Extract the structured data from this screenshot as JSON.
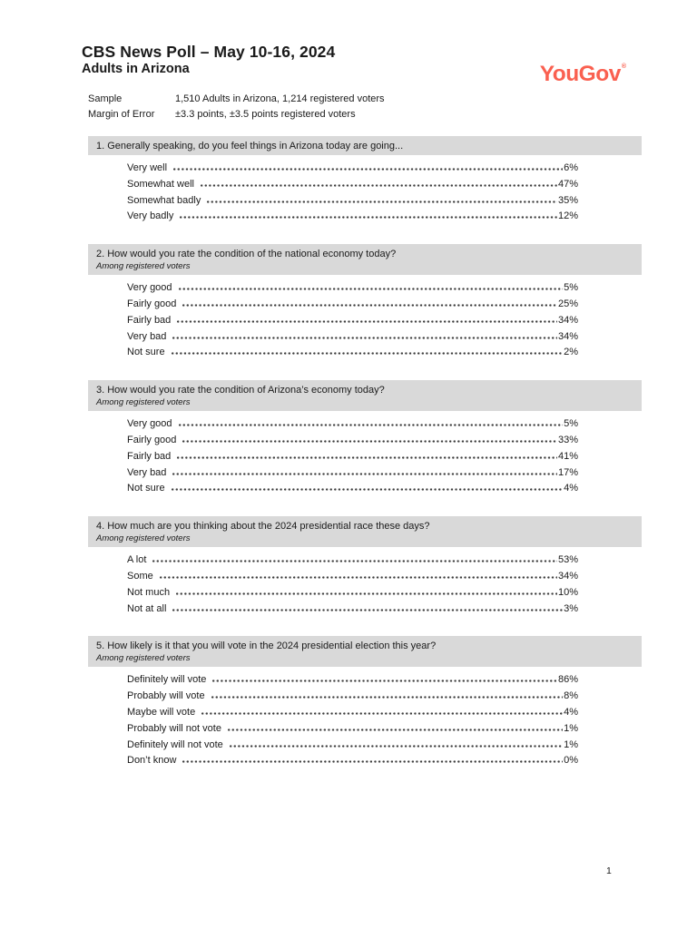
{
  "header": {
    "title": "CBS News Poll – May 10-16, 2024",
    "subtitle": "Adults in Arizona",
    "logo_text": "YouGov",
    "logo_mark": "®"
  },
  "info": {
    "rows": [
      {
        "label": "Sample",
        "value": "1,510 Adults in Arizona, 1,214 registered voters"
      },
      {
        "label": "Margin of Error",
        "value": "±3.3 points, ±3.5 points registered voters"
      }
    ]
  },
  "questions": [
    {
      "text": "1. Generally speaking, do you feel things in Arizona today are going...",
      "subtext": "",
      "answers": [
        {
          "label": "Very well",
          "value": "6%"
        },
        {
          "label": "Somewhat well",
          "value": "47%"
        },
        {
          "label": "Somewhat badly",
          "value": "35%"
        },
        {
          "label": "Very badly",
          "value": "12%"
        }
      ]
    },
    {
      "text": "2. How would you rate the condition of the national economy today?",
      "subtext": "Among registered voters",
      "answers": [
        {
          "label": "Very good",
          "value": "5%"
        },
        {
          "label": "Fairly good",
          "value": "25%"
        },
        {
          "label": "Fairly bad",
          "value": "34%"
        },
        {
          "label": "Very bad",
          "value": "34%"
        },
        {
          "label": "Not sure",
          "value": "2%"
        }
      ]
    },
    {
      "text": "3. How would you rate the condition of Arizona’s economy today?",
      "subtext": "Among registered voters",
      "answers": [
        {
          "label": "Very good",
          "value": "5%"
        },
        {
          "label": "Fairly good",
          "value": "33%"
        },
        {
          "label": "Fairly bad",
          "value": "41%"
        },
        {
          "label": "Very bad",
          "value": "17%"
        },
        {
          "label": "Not sure",
          "value": "4%"
        }
      ]
    },
    {
      "text": "4. How much are you thinking about the 2024 presidential race these days?",
      "subtext": "Among registered voters",
      "answers": [
        {
          "label": "A lot",
          "value": "53%"
        },
        {
          "label": "Some",
          "value": "34%"
        },
        {
          "label": "Not much",
          "value": "10%"
        },
        {
          "label": "Not at all",
          "value": "3%"
        }
      ]
    },
    {
      "text": "5. How likely is it that you will vote in the 2024 presidential election this year?",
      "subtext": "Among registered voters",
      "answers": [
        {
          "label": "Definitely will vote",
          "value": "86%"
        },
        {
          "label": "Probably will vote",
          "value": "8%"
        },
        {
          "label": "Maybe will vote",
          "value": "4%"
        },
        {
          "label": "Probably will not vote",
          "value": "1%"
        },
        {
          "label": "Definitely will not vote",
          "value": "1%"
        },
        {
          "label": "Don’t know",
          "value": "0%"
        }
      ]
    }
  ],
  "footer": {
    "page_number": "1"
  },
  "colors": {
    "question_bar": "#d9d9d9",
    "text": "#1a1a1a",
    "dot_leader": "#3d3d3d",
    "logo": "#fa6050"
  }
}
